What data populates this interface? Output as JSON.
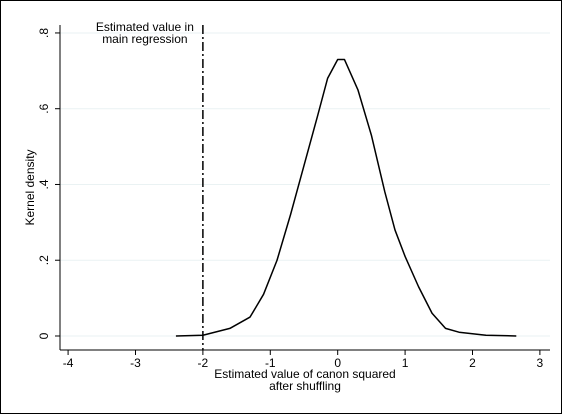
{
  "chart_data": {
    "type": "line",
    "ylabel": "Kernel density",
    "xlabel": [
      "Estimated value of canon squared",
      "after shuffling"
    ],
    "x": [
      -2.4,
      -2,
      -1.6,
      -1.3,
      -1.1,
      -0.9,
      -0.7,
      -0.5,
      -0.3,
      -0.15,
      0,
      0.1,
      0.3,
      0.5,
      0.7,
      0.85,
      1.0,
      1.2,
      1.4,
      1.6,
      1.8,
      2.2,
      2.65
    ],
    "series": [
      {
        "color": "#000000",
        "values": [
          0,
          0.002,
          0.02,
          0.05,
          0.11,
          0.2,
          0.32,
          0.45,
          0.58,
          0.68,
          0.73,
          0.73,
          0.65,
          0.53,
          0.38,
          0.28,
          0.21,
          0.13,
          0.06,
          0.02,
          0.01,
          0.002,
          0
        ]
      }
    ],
    "reference_line": {
      "x": -2,
      "label": [
        "Estimated value in",
        "main regression"
      ],
      "color": "#000000",
      "dash": true
    },
    "xlim": [
      -4.12,
      3.15
    ],
    "ylim": [
      -0.037,
      0.821
    ],
    "xticks": [
      -4,
      -3,
      -2,
      -1,
      0,
      1,
      2,
      3
    ],
    "yticks": [
      0,
      {
        "value": 0.2,
        "label": ".2"
      },
      {
        "value": 0.4,
        "label": ".4"
      },
      {
        "value": 0.6,
        "label": ".6"
      },
      {
        "value": 0.8,
        "label": ".8"
      }
    ],
    "grid": true
  }
}
